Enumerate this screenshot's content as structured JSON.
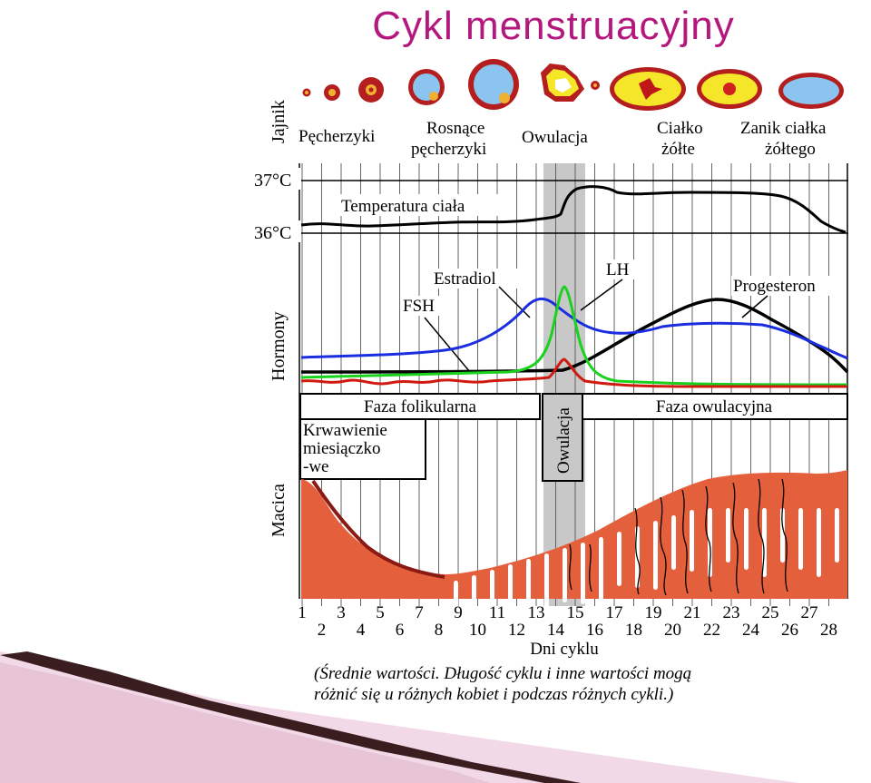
{
  "title": "Cykl menstruacyjny",
  "row_labels": {
    "ovary": "Jajnik",
    "hormones": "Hormony",
    "uterus": "Macica"
  },
  "ovary_stages": [
    "Pęcherzyki",
    "Rosnące",
    "pęcherzyki",
    "Owulacja",
    "Ciałko",
    "żółte",
    "Zanik ciałka",
    "żółtego"
  ],
  "temperature": {
    "t37": "37°C",
    "t36": "36°C",
    "label": "Temperatura ciała"
  },
  "hormones": {
    "estradiol": "Estradiol",
    "lh": "LH",
    "fsh": "FSH",
    "progesteron": "Progesteron"
  },
  "phases": {
    "follicular": "Faza folikularna",
    "ovulation": "Owulacja",
    "ovulatory": "Faza owulacyjna"
  },
  "bleeding": [
    "Krwawienie",
    "miesiączko",
    "-we"
  ],
  "days_odd": [
    "1",
    "3",
    "5",
    "7",
    "9",
    "11",
    "13",
    "15",
    "17",
    "19",
    "21",
    "23",
    "25",
    "27"
  ],
  "days_even": [
    "2",
    "4",
    "6",
    "8",
    "10",
    "12",
    "14",
    "16",
    "18",
    "20",
    "22",
    "24",
    "26",
    "28"
  ],
  "axis_label": "Dni cyklu",
  "footnote": [
    "(Średnie wartości. Długość cyklu i inne wartości mogą",
    "różnić się u różnych kobiet i podczas różnych cykli.)"
  ],
  "colors": {
    "title": "#b4187e",
    "estradiol": "#1a2ee0",
    "lh": "#19d21e",
    "fsh": "#d01a10",
    "progesteron": "#000000",
    "uterus": "#e4603c",
    "ovulation_band": "#c8c8c8"
  }
}
